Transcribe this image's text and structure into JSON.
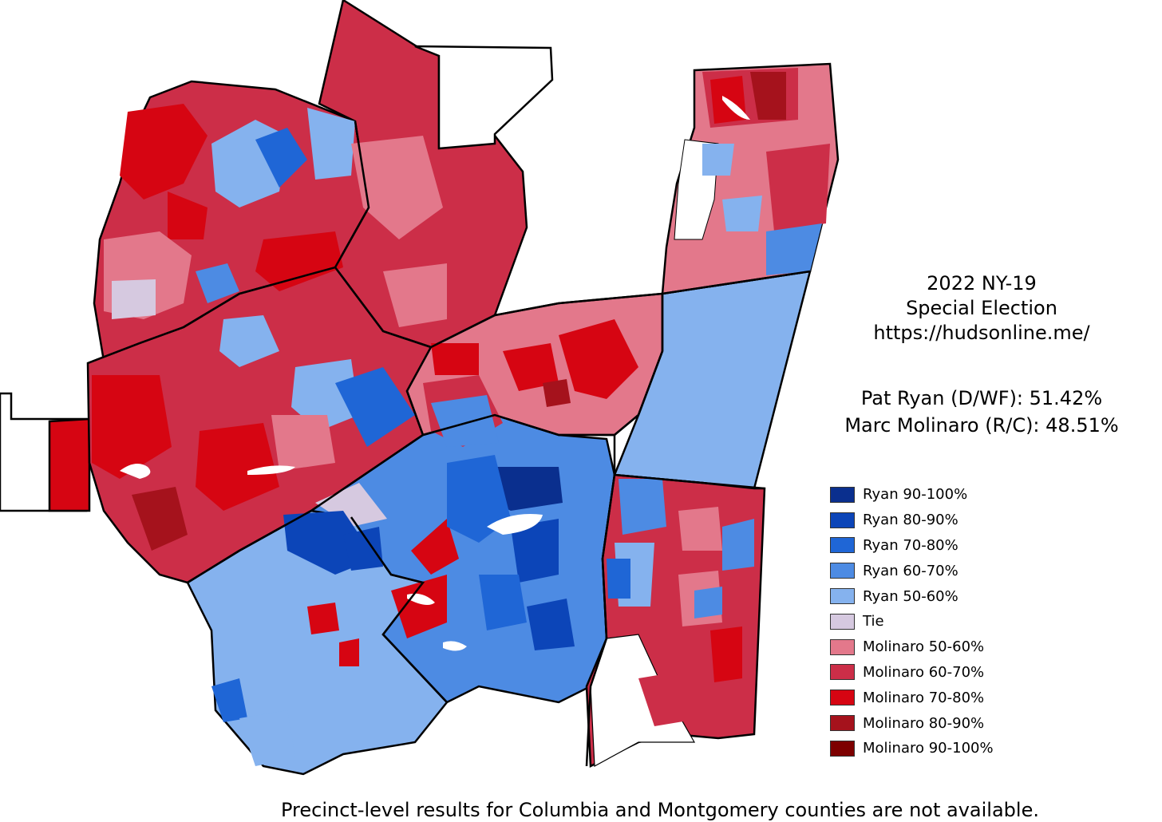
{
  "title": {
    "line1": "2022 NY-19",
    "line2": "Special Election",
    "line3": "https://hudsonline.me/"
  },
  "results": {
    "line1": "Pat Ryan (D/WF): 51.42%",
    "line2": "Marc Molinaro (R/C): 48.51%"
  },
  "legend": [
    {
      "label": "Ryan 90-100%",
      "color": "#0a2f8e"
    },
    {
      "label": "Ryan 80-90%",
      "color": "#0c45b8"
    },
    {
      "label": "Ryan 70-80%",
      "color": "#1f66d6"
    },
    {
      "label": "Ryan 60-70%",
      "color": "#4d8be3"
    },
    {
      "label": "Ryan 50-60%",
      "color": "#85b2ee"
    },
    {
      "label": "Tie",
      "color": "#d6c9e0"
    },
    {
      "label": "Molinaro 50-60%",
      "color": "#e3788b"
    },
    {
      "label": "Molinaro 60-70%",
      "color": "#cc2e48"
    },
    {
      "label": "Molinaro 70-80%",
      "color": "#d60512"
    },
    {
      "label": "Molinaro 80-90%",
      "color": "#a5121c"
    },
    {
      "label": "Molinaro 90-100%",
      "color": "#7d0000"
    }
  ],
  "footnote": "Precinct-level results for Columbia and Montgomery counties are not available."
}
